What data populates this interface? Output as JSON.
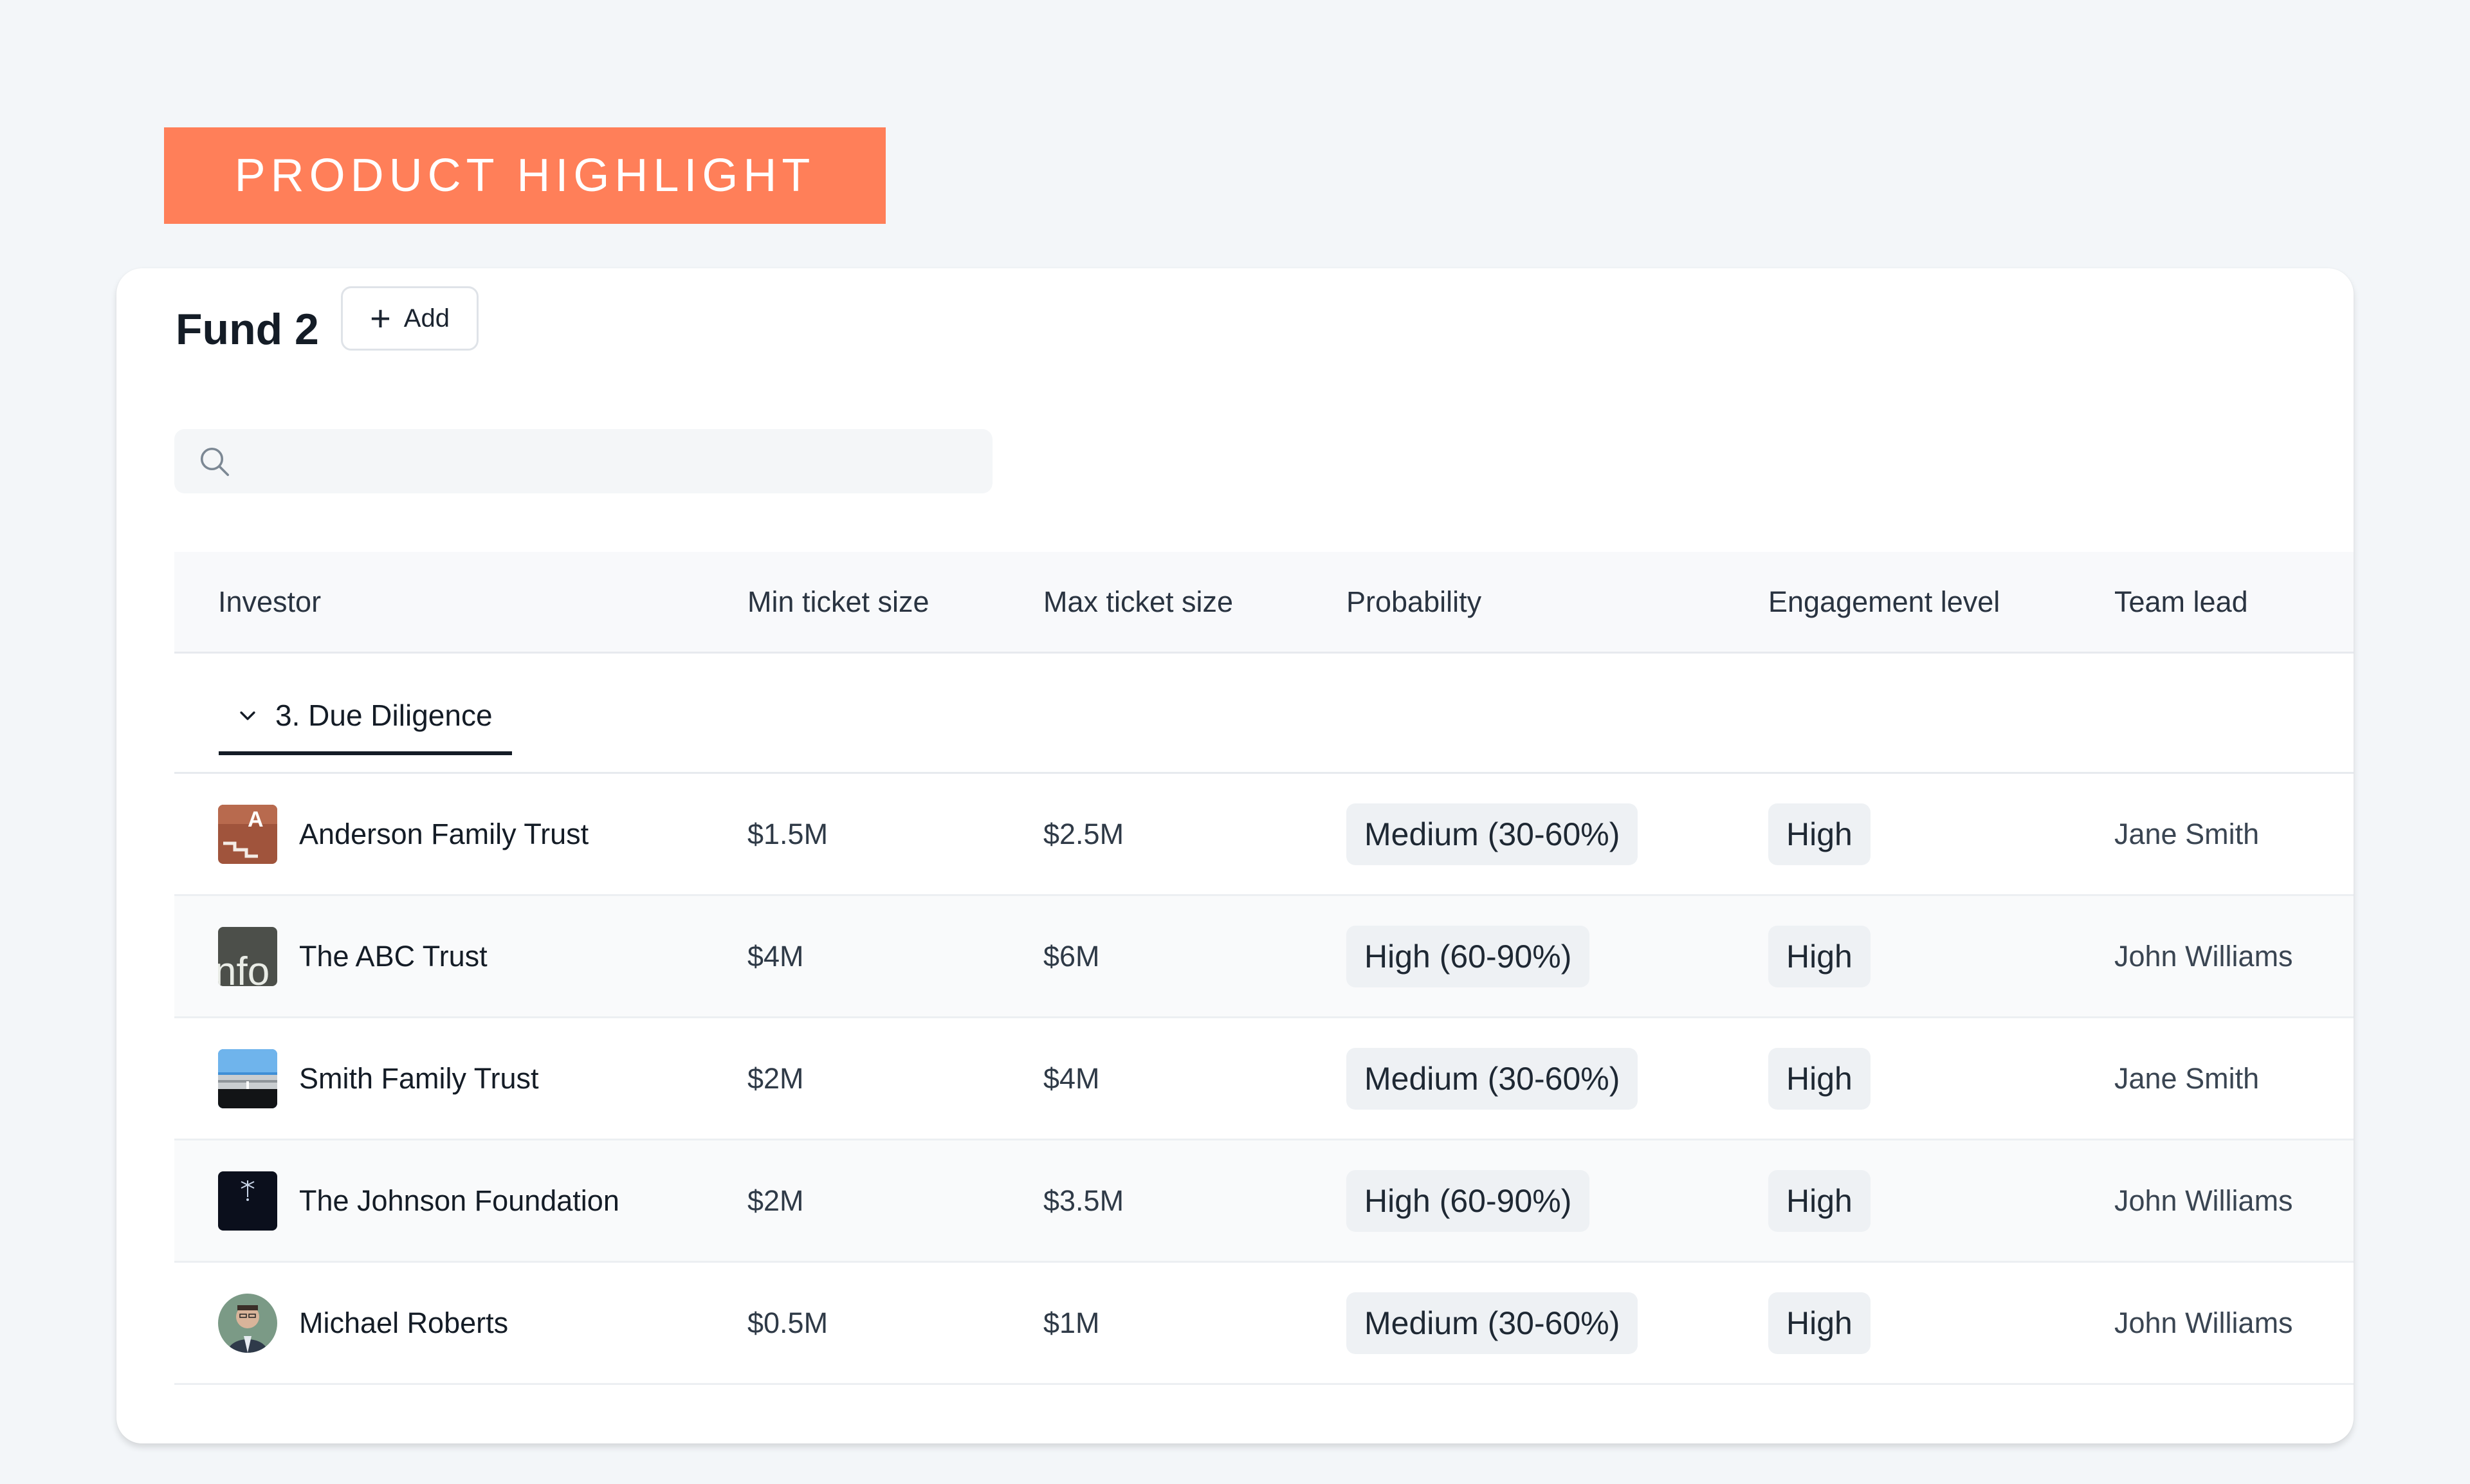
{
  "banner": {
    "label": "PRODUCT HIGHLIGHT"
  },
  "fund": {
    "title": "Fund 2",
    "add_label": "Add"
  },
  "search": {
    "placeholder": ""
  },
  "columns": [
    "Investor",
    "Min ticket size",
    "Max ticket size",
    "Probability",
    "Engagement level",
    "Team lead"
  ],
  "group": {
    "label": "3. Due Diligence"
  },
  "rows": [
    {
      "investor": "Anderson Family Trust",
      "avatar": "stairs-logo",
      "min": "$1.5M",
      "max": "$2.5M",
      "probability": "Medium (30-60%)",
      "engagement": "High",
      "lead": "Jane Smith"
    },
    {
      "investor": "The ABC Trust",
      "avatar": "info-sign-image",
      "min": "$4M",
      "max": "$6M",
      "probability": "High (60-90%)",
      "engagement": "High",
      "lead": "John Williams"
    },
    {
      "investor": "Smith Family Trust",
      "avatar": "building-photo",
      "min": "$2M",
      "max": "$4M",
      "probability": "Medium (30-60%)",
      "engagement": "High",
      "lead": "Jane Smith"
    },
    {
      "investor": "The Johnson Foundation",
      "avatar": "dark-tree-image",
      "min": "$2M",
      "max": "$3.5M",
      "probability": "High (60-90%)",
      "engagement": "High",
      "lead": "John Williams"
    },
    {
      "investor": "Michael Roberts",
      "avatar": "person-photo",
      "min": "$0.5M",
      "max": "$1M",
      "probability": "Medium (30-60%)",
      "engagement": "High",
      "lead": "John Williams"
    }
  ],
  "colors": {
    "banner": "#ff7f59",
    "pill_bg": "#eef1f4",
    "page_bg": "#f3f6f9"
  }
}
